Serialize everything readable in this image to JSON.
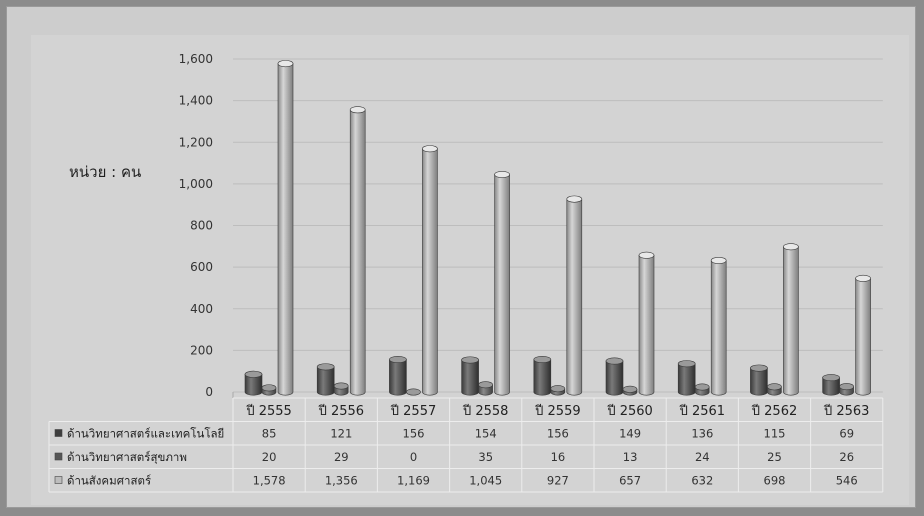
{
  "unit_label": "หน่วย : คน",
  "chart_data": {
    "type": "bar",
    "title": "",
    "xlabel": "",
    "ylabel": "",
    "ylim": [
      0,
      1600
    ],
    "yticks": [
      "0",
      "200",
      "400",
      "600",
      "800",
      "1,000",
      "1,200",
      "1,400",
      "1,600"
    ],
    "categories": [
      "ปี 2555",
      "ปี 2556",
      "ปี 2557",
      "ปี 2558",
      "ปี 2559",
      "ปี 2560",
      "ปี 2561",
      "ปี 2562",
      "ปี 2563"
    ],
    "series": [
      {
        "name": "ด้านวิทยาศาสตร์และเทคโนโลยี",
        "color": "#5a5a5a",
        "values": [
          85,
          121,
          156,
          154,
          156,
          149,
          136,
          115,
          69
        ],
        "labels": [
          "85",
          "121",
          "156",
          "154",
          "156",
          "149",
          "136",
          "115",
          "69"
        ]
      },
      {
        "name": "ด้านวิทยาศาสตร์สุขภาพ",
        "color": "#6e6e6e",
        "values": [
          20,
          29,
          0,
          35,
          16,
          13,
          24,
          25,
          26
        ],
        "labels": [
          "20",
          "29",
          "0",
          "35",
          "16",
          "13",
          "24",
          "25",
          "26"
        ]
      },
      {
        "name": "ด้านสังคมศาสตร์",
        "color": "#a9a9a9",
        "values": [
          1578,
          1356,
          1169,
          1045,
          927,
          657,
          632,
          698,
          546
        ],
        "labels": [
          "1,578",
          "1,356",
          "1,169",
          "1,045",
          "927",
          "657",
          "632",
          "698",
          "546"
        ]
      }
    ],
    "grid": true,
    "legend": "data-table"
  }
}
